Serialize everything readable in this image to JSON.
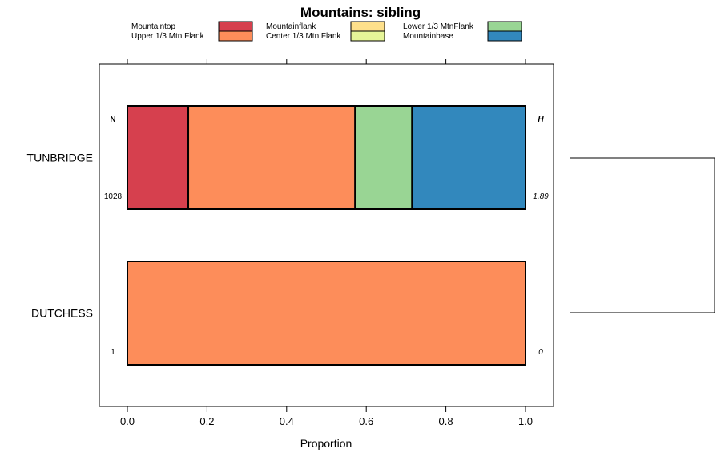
{
  "chart_data": {
    "type": "bar",
    "orientation": "horizontal",
    "stacked": true,
    "title": "Mountains: sibling",
    "xlabel": "Proportion",
    "xlim": [
      0,
      1
    ],
    "x_ticks": [
      "0.0",
      "0.2",
      "0.4",
      "0.6",
      "0.8",
      "1.0"
    ],
    "legend_position": "top",
    "series": [
      {
        "name": "Mountaintop",
        "color": "#D6404E"
      },
      {
        "name": "Upper 1/3 Mtn Flank",
        "color": "#FD8D5A"
      },
      {
        "name": "Mountainflank",
        "color": "#FEE08B"
      },
      {
        "name": "Center 1/3 Mtn Flank",
        "color": "#E6F598"
      },
      {
        "name": "Lower 1/3 MtnFlank",
        "color": "#99D594"
      },
      {
        "name": "Mountainbase",
        "color": "#3288BD"
      }
    ],
    "categories": [
      "TUNBRIDGE",
      "DUTCHESS"
    ],
    "values": [
      [
        0.153,
        0.419,
        0.0,
        0.0,
        0.143,
        0.285
      ],
      [
        0.0,
        1.0,
        0.0,
        0.0,
        0.0,
        0.0
      ]
    ],
    "n_header": "N",
    "h_header": "H",
    "n_values": [
      "1028",
      "1"
    ],
    "h_values": [
      "1.89",
      "0"
    ],
    "dendrogram": true
  }
}
